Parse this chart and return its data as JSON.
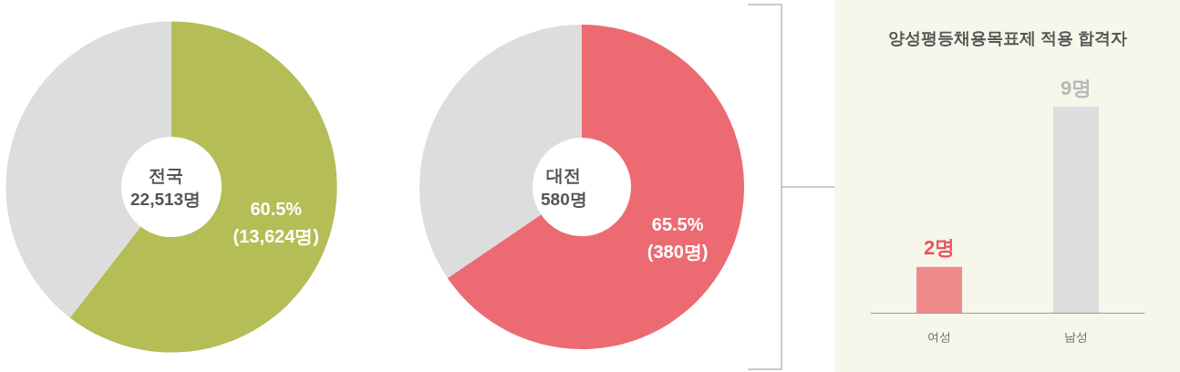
{
  "chart_data": [
    {
      "type": "donut",
      "categories": [
        null,
        null
      ],
      "values": [
        60.5,
        39.5
      ],
      "colors": [
        "#b5bd57",
        "#dcdddc"
      ],
      "value_labels": [
        "60.5%\n(13,624명)",
        null
      ],
      "annotations": [
        "전국\n22,513명"
      ]
    },
    {
      "type": "donut",
      "categories": [
        null,
        null
      ],
      "values": [
        65.5,
        34.5
      ],
      "colors": [
        "#ec6b73",
        "#dcdddc"
      ],
      "value_labels": [
        "65.5%\n(380명)",
        null
      ],
      "annotations": [
        "대전\n580명"
      ]
    },
    {
      "type": "bar",
      "title": "양성평등채용목표제 적용 합격자",
      "categories": [
        "여성",
        "남성"
      ],
      "values": [
        2,
        9
      ],
      "colors": [
        "#f08a8a",
        "#dcdddc"
      ],
      "value_labels": [
        "2명",
        "9명"
      ]
    }
  ]
}
